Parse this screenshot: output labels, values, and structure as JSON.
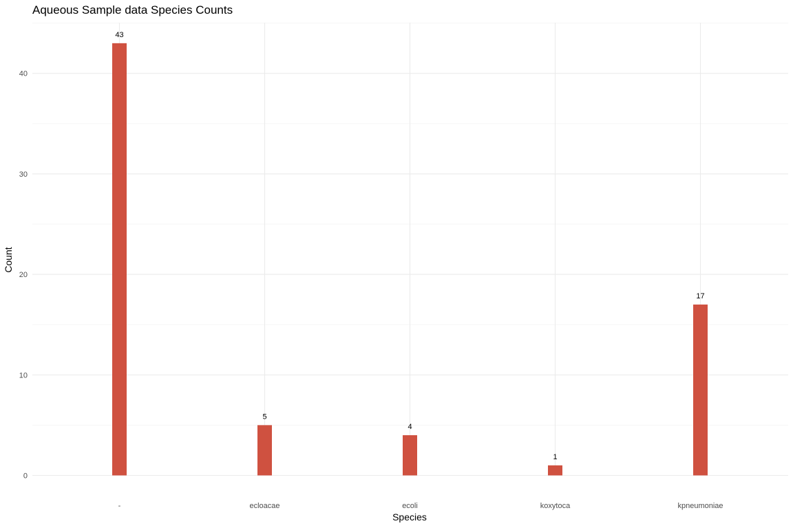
{
  "chart_data": {
    "type": "bar",
    "title": "Aqueous Sample data Species Counts",
    "xlabel": "Species",
    "ylabel": "Count",
    "categories": [
      "-",
      "ecloacae",
      "ecoli",
      "koxytoca",
      "kpneumoniae"
    ],
    "values": [
      43,
      5,
      4,
      1,
      17
    ],
    "data_labels": [
      "43",
      "5",
      "4",
      "1",
      "17"
    ],
    "y_ticks": [
      0,
      10,
      20,
      30,
      40
    ],
    "y_tick_labels": [
      "0",
      "10",
      "20",
      "30",
      "40"
    ],
    "ylim": [
      0,
      45
    ],
    "grid": true,
    "legend": "none",
    "bar_color": "#cf5140"
  }
}
